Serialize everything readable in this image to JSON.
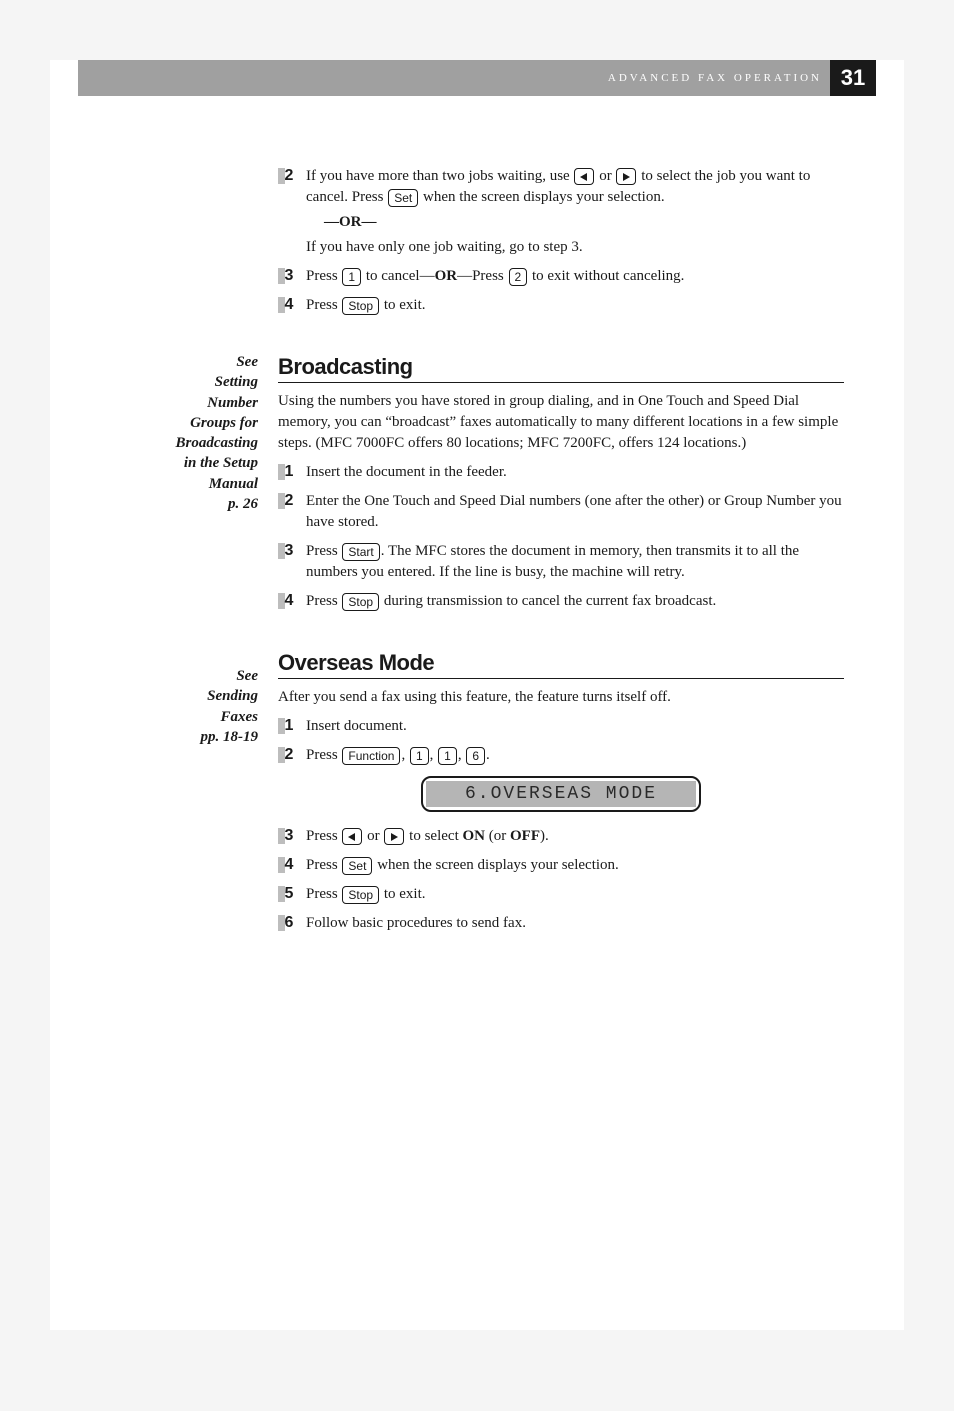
{
  "header": {
    "section_title": "ADVANCED FAX OPERATION",
    "page_number": "31"
  },
  "sidebar": {
    "note1": {
      "l1": "See",
      "l2": "Setting",
      "l3": "Number",
      "l4": "Groups for",
      "l5": "Broadcasting",
      "l6": "in the Setup",
      "l7": "Manual",
      "l8": "p. 26"
    },
    "note2": {
      "l1": "See",
      "l2": "Sending",
      "l3": "Faxes",
      "l4": "pp. 18-19"
    }
  },
  "sections": {
    "top_steps": {
      "s2a": "If you have more than two jobs waiting, use ",
      "s2b": " or ",
      "s2c": " to select the job you want to cancel. Press ",
      "s2d": " when the screen displays your selection.",
      "or": "—OR—",
      "s2e": "If you have only one job waiting, go to step 3.",
      "s3a": "Press ",
      "s3b": " to cancel—",
      "s3c": "OR",
      "s3d": "—Press ",
      "s3e": " to exit without canceling.",
      "s4a": "Press ",
      "s4b": " to exit."
    },
    "broadcasting": {
      "heading": "Broadcasting",
      "intro": "Using the numbers you have stored in group dialing, and in One Touch and Speed Dial memory, you can “broadcast” faxes automatically to many different locations in a few simple steps. (MFC 7000FC offers 80 locations; MFC 7200FC, offers 124 locations.)",
      "s1": "Insert the document in the feeder.",
      "s2": "Enter the One Touch and Speed Dial numbers (one after the other) or Group Number you have stored.",
      "s3a": "Press ",
      "s3b": ". The MFC stores the document in memory, then transmits it to all the numbers you entered. If the line is busy, the machine will retry.",
      "s4a": "Press ",
      "s4b": " during transmission to cancel the current fax broadcast."
    },
    "overseas": {
      "heading": "Overseas Mode",
      "intro": "After you send a fax using this feature, the feature turns itself off.",
      "s1": "Insert document.",
      "s2a": "Press ",
      "s2b": ", ",
      "s2c": ", ",
      "s2d": ", ",
      "s2e": ".",
      "lcd": "6.OVERSEAS MODE",
      "s3a": "Press ",
      "s3b": " or ",
      "s3c": " to select ",
      "s3d": "ON",
      "s3e": " (or ",
      "s3f": "OFF",
      "s3g": ").",
      "s4a": "Press ",
      "s4b": " when the screen displays your selection.",
      "s5a": "Press ",
      "s5b": " to exit.",
      "s6": "Follow basic procedures to send fax."
    }
  },
  "keys": {
    "set": "Set",
    "stop": "Stop",
    "start": "Start",
    "function": "Function",
    "k1": "1",
    "k2": "2",
    "k6": "6"
  },
  "step_nums": {
    "n1": "1",
    "n2": "2",
    "n3": "3",
    "n4": "4",
    "n5": "5",
    "n6": "6"
  }
}
